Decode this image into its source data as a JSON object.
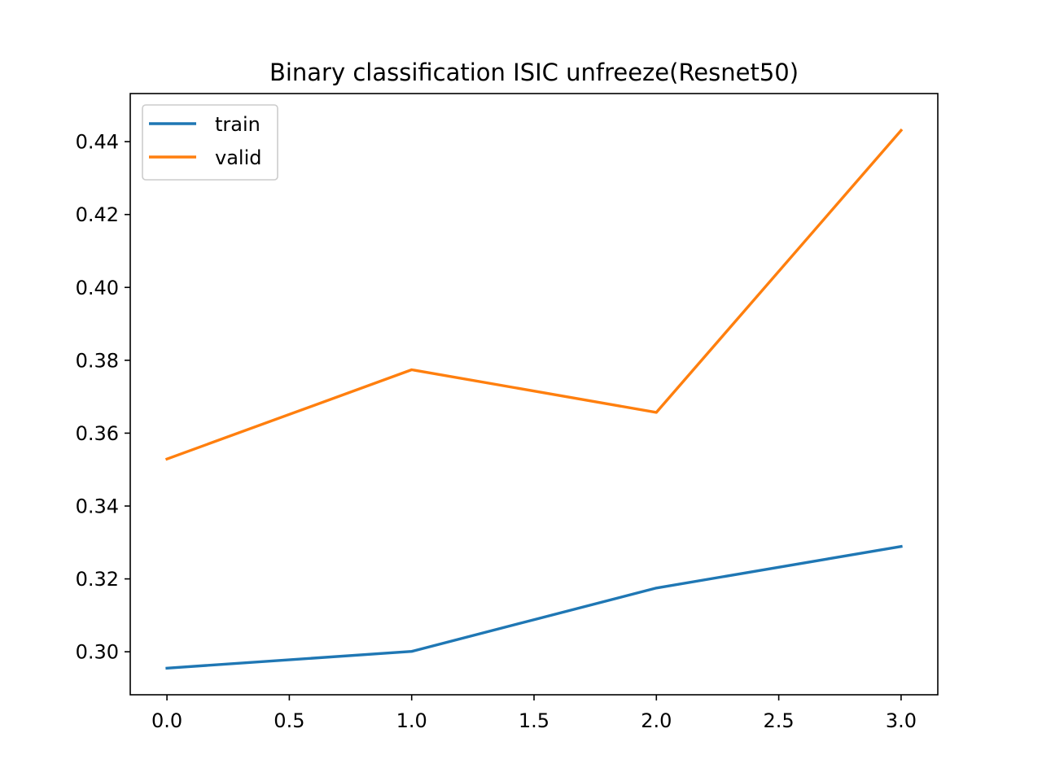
{
  "chart_data": {
    "type": "line",
    "title": "Binary classification ISIC unfreeze(Resnet50)",
    "xlabel": "",
    "ylabel": "",
    "x": [
      0,
      1,
      2,
      3
    ],
    "xlim": [
      -0.15,
      3.15
    ],
    "ylim": [
      0.2882,
      0.4532
    ],
    "xticks": [
      0.0,
      0.5,
      1.0,
      1.5,
      2.0,
      2.5,
      3.0
    ],
    "xtick_labels": [
      "0.0",
      "0.5",
      "1.0",
      "1.5",
      "2.0",
      "2.5",
      "3.0"
    ],
    "yticks": [
      0.3,
      0.32,
      0.34,
      0.36,
      0.38,
      0.4,
      0.42,
      0.44
    ],
    "ytick_labels": [
      "0.30",
      "0.32",
      "0.34",
      "0.36",
      "0.38",
      "0.40",
      "0.42",
      "0.44"
    ],
    "grid": false,
    "legend_position": "upper-left",
    "series": [
      {
        "name": "train",
        "color": "#1f77b4",
        "values": [
          0.2955,
          0.3001,
          0.3175,
          0.3289
        ]
      },
      {
        "name": "valid",
        "color": "#ff7f0e",
        "values": [
          0.3529,
          0.3774,
          0.3657,
          0.4431
        ]
      }
    ]
  }
}
